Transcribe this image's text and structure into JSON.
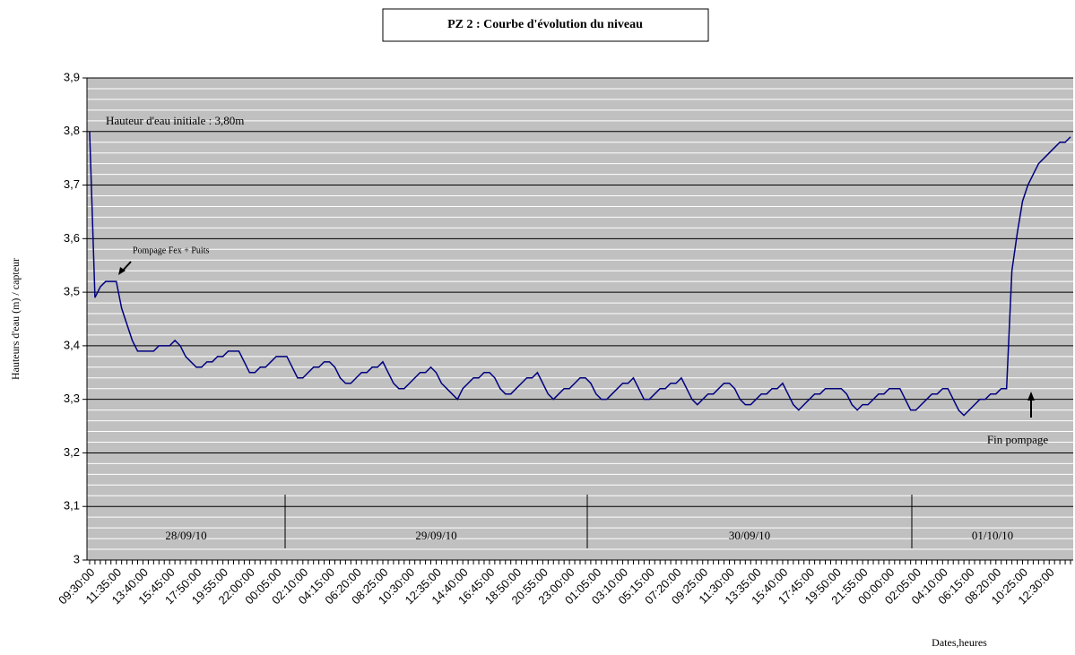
{
  "chart_data": {
    "type": "line",
    "title": "PZ 2 : Courbe d'évolution du niveau",
    "y_label": "Hauteurs d'eau (m) / capteur",
    "x_label": "Dates,heures",
    "annotations": [
      "Hauteur d'eau initiale : 3,80m",
      "Pompage Fex + Puits",
      "Fin pompage"
    ],
    "date_groups": [
      "28/09/10",
      "29/09/10",
      "30/09/10",
      "01/10/10"
    ],
    "categories": [
      "09:30:00",
      null,
      null,
      null,
      null,
      "11:35:00",
      null,
      null,
      null,
      null,
      "13:40:00",
      null,
      null,
      null,
      null,
      "15:45:00",
      null,
      null,
      null,
      null,
      "17:50:00",
      null,
      null,
      null,
      null,
      "19:55:00",
      null,
      null,
      null,
      null,
      "22:00:00",
      null,
      null,
      null,
      null,
      "00:05:00",
      null,
      null,
      null,
      null,
      "02:10:00",
      null,
      null,
      null,
      null,
      "04:15:00",
      null,
      null,
      null,
      null,
      "06:20:00",
      null,
      null,
      null,
      null,
      "08:25:00",
      null,
      null,
      null,
      null,
      "10:30:00",
      null,
      null,
      null,
      null,
      "12:35:00",
      null,
      null,
      null,
      null,
      "14:40:00",
      null,
      null,
      null,
      null,
      "16:45:00",
      null,
      null,
      null,
      null,
      "18:50:00",
      null,
      null,
      null,
      null,
      "20:55:00",
      null,
      null,
      null,
      null,
      "23:00:00",
      null,
      null,
      null,
      null,
      "01:05:00",
      null,
      null,
      null,
      null,
      "03:10:00",
      null,
      null,
      null,
      null,
      "05:15:00",
      null,
      null,
      null,
      null,
      "07:20:00",
      null,
      null,
      null,
      null,
      "09:25:00",
      null,
      null,
      null,
      null,
      "11:30:00",
      null,
      null,
      null,
      null,
      "13:35:00",
      null,
      null,
      null,
      null,
      "15:40:00",
      null,
      null,
      null,
      null,
      "17:45:00",
      null,
      null,
      null,
      null,
      "19:50:00",
      null,
      null,
      null,
      null,
      "21:55:00",
      null,
      null,
      null,
      null,
      "00:00:00",
      null,
      null,
      null,
      null,
      "02:05:00",
      null,
      null,
      null,
      null,
      "04:10:00",
      null,
      null,
      null,
      null,
      "06:15:00",
      null,
      null,
      null,
      null,
      "08:20:00",
      null,
      null,
      null,
      null,
      "10:25:00",
      null,
      null,
      null,
      null,
      "12:30:00",
      null,
      null,
      null,
      null
    ],
    "series": [
      {
        "name": "PZ 2",
        "color": "#000080",
        "values": [
          3.8,
          3.49,
          3.51,
          3.52,
          3.52,
          3.52,
          3.47,
          3.44,
          3.41,
          3.39,
          3.39,
          3.39,
          3.39,
          3.4,
          3.4,
          3.4,
          3.41,
          3.4,
          3.38,
          3.37,
          3.36,
          3.36,
          3.37,
          3.37,
          3.38,
          3.38,
          3.39,
          3.39,
          3.39,
          3.37,
          3.35,
          3.35,
          3.36,
          3.36,
          3.37,
          3.38,
          3.38,
          3.38,
          3.36,
          3.34,
          3.34,
          3.35,
          3.36,
          3.36,
          3.37,
          3.37,
          3.36,
          3.34,
          3.33,
          3.33,
          3.34,
          3.35,
          3.35,
          3.36,
          3.36,
          3.37,
          3.35,
          3.33,
          3.32,
          3.32,
          3.33,
          3.34,
          3.35,
          3.35,
          3.36,
          3.35,
          3.33,
          3.32,
          3.31,
          3.3,
          3.32,
          3.33,
          3.34,
          3.34,
          3.35,
          3.35,
          3.34,
          3.32,
          3.31,
          3.31,
          3.32,
          3.33,
          3.34,
          3.34,
          3.35,
          3.33,
          3.31,
          3.3,
          3.31,
          3.32,
          3.32,
          3.33,
          3.34,
          3.34,
          3.33,
          3.31,
          3.3,
          3.3,
          3.31,
          3.32,
          3.33,
          3.33,
          3.34,
          3.32,
          3.3,
          3.3,
          3.31,
          3.32,
          3.32,
          3.33,
          3.33,
          3.34,
          3.32,
          3.3,
          3.29,
          3.3,
          3.31,
          3.31,
          3.32,
          3.33,
          3.33,
          3.32,
          3.3,
          3.29,
          3.29,
          3.3,
          3.31,
          3.31,
          3.32,
          3.32,
          3.33,
          3.31,
          3.29,
          3.28,
          3.29,
          3.3,
          3.31,
          3.31,
          3.32,
          3.32,
          3.32,
          3.32,
          3.31,
          3.29,
          3.28,
          3.29,
          3.29,
          3.3,
          3.31,
          3.31,
          3.32,
          3.32,
          3.32,
          3.3,
          3.28,
          3.28,
          3.29,
          3.3,
          3.31,
          3.31,
          3.32,
          3.32,
          3.3,
          3.28,
          3.27,
          3.28,
          3.29,
          3.3,
          3.3,
          3.31,
          3.31,
          3.32,
          3.32,
          3.54,
          3.61,
          3.67,
          3.7,
          3.72,
          3.74,
          3.75,
          3.76,
          3.77,
          3.78,
          3.78,
          3.79
        ]
      }
    ],
    "ylim": [
      3,
      3.9
    ],
    "yticks": [
      3,
      {
        "value": 3.1,
        "label": "3,1"
      },
      {
        "value": 3.2,
        "label": "3,2"
      },
      {
        "value": 3.3,
        "label": "3,3"
      },
      {
        "value": 3.4,
        "label": "3,4"
      },
      {
        "value": 3.5,
        "label": "3,5"
      },
      {
        "value": 3.6,
        "label": "3,6"
      },
      {
        "value": 3.7,
        "label": "3,7"
      },
      {
        "value": 3.8,
        "label": "3,8"
      },
      {
        "value": 3.9,
        "label": "3,9"
      }
    ],
    "grid": true
  }
}
